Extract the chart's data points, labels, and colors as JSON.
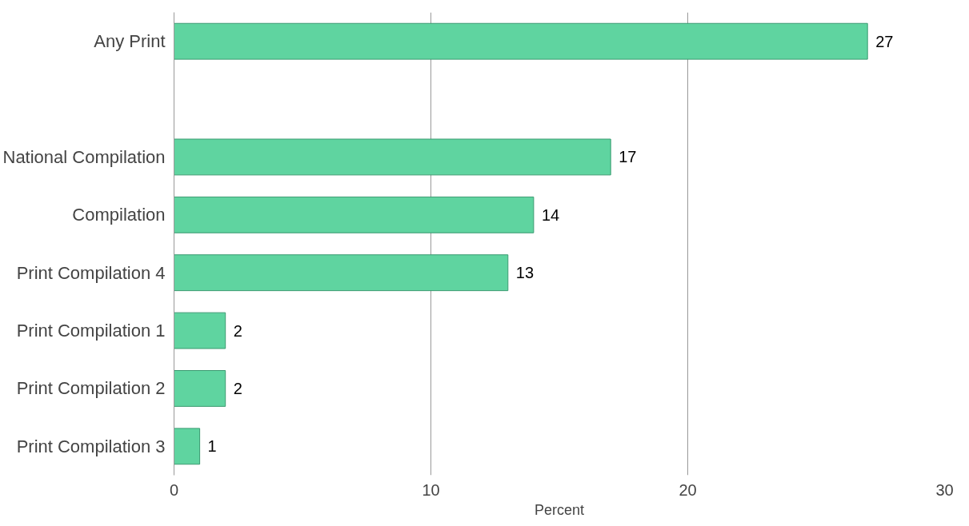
{
  "chart_data": {
    "type": "bar",
    "orientation": "horizontal",
    "xlabel": "Percent",
    "categories": [
      "Any Print",
      null,
      "National Compilation",
      "Compilation",
      "Print Compilation 4",
      "Print Compilation 1",
      "Print Compilation 2",
      "Print Compilation 3"
    ],
    "values": [
      27,
      null,
      17,
      14,
      13,
      2,
      2,
      1
    ],
    "color": "#5fd4a0",
    "xlim": [
      0,
      30
    ],
    "xticks": [
      0,
      10,
      20,
      30
    ],
    "grid": "x",
    "data_labels": true
  }
}
